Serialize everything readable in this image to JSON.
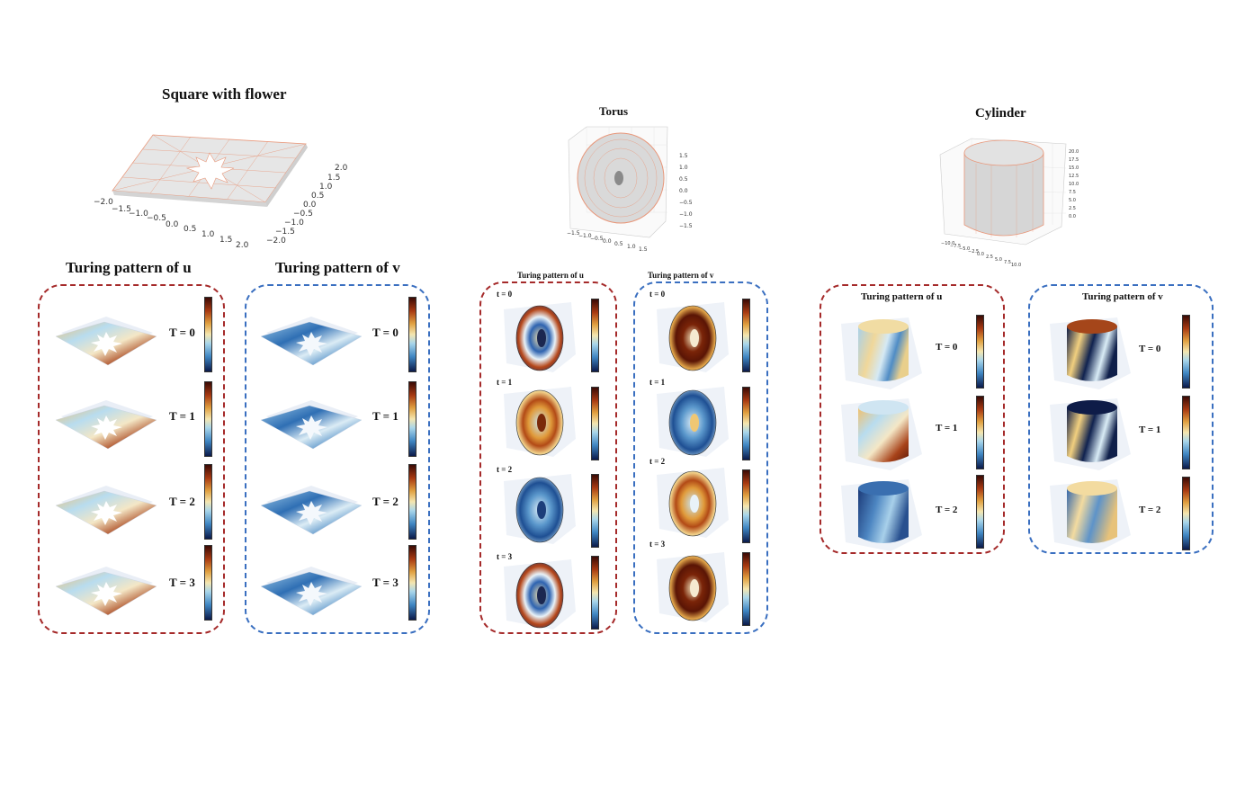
{
  "square": {
    "title": "Square with flower",
    "u_title": "Turing pattern of u",
    "v_title": "Turing pattern of v",
    "frames": [
      "T = 0",
      "T = 1",
      "T = 2",
      "T = 3"
    ],
    "x_ticks": [
      "−2.0",
      "−1.5",
      "−1.0",
      "−0.5",
      "0.0",
      "0.5",
      "1.0",
      "1.5",
      "2.0"
    ],
    "y_ticks": [
      "2.0",
      "1.5",
      "1.0",
      "0.5",
      "0.0",
      "−0.5",
      "−1.0",
      "−1.5",
      "−2.0"
    ]
  },
  "torus": {
    "title": "Torus",
    "u_title": "Turing pattern of u",
    "v_title": "Turing pattern of v",
    "frames": [
      "t = 0",
      "t = 1",
      "t = 2",
      "t = 3"
    ],
    "x_ticks": [
      "−1.5",
      "−1.0",
      "−0.5",
      "0.0",
      "0.5",
      "1.0",
      "1.5"
    ],
    "z_ticks": [
      "1.5",
      "1.0",
      "0.5",
      "0.0",
      "−0.5",
      "−1.0",
      "−1.5"
    ]
  },
  "cylinder": {
    "title": "Cylinder",
    "u_title": "Turing pattern of u",
    "v_title": "Turing pattern of v",
    "frames": [
      "T = 0",
      "T = 1",
      "T = 2"
    ],
    "x_ticks": [
      "−10.0",
      "−7.5",
      "−5.0",
      "−2.5",
      "0.0",
      "2.5",
      "5.0",
      "7.5",
      "10.0"
    ],
    "z_ticks": [
      "20.0",
      "17.5",
      "15.0",
      "12.5",
      "10.0",
      "7.5",
      "5.0",
      "2.5",
      "0.0"
    ]
  },
  "colors": {
    "red_box": "#a52a2a",
    "blue_box": "#3a6fc0",
    "mesh_edge": "#e8977a",
    "mesh_face": "#e6e6e6"
  }
}
